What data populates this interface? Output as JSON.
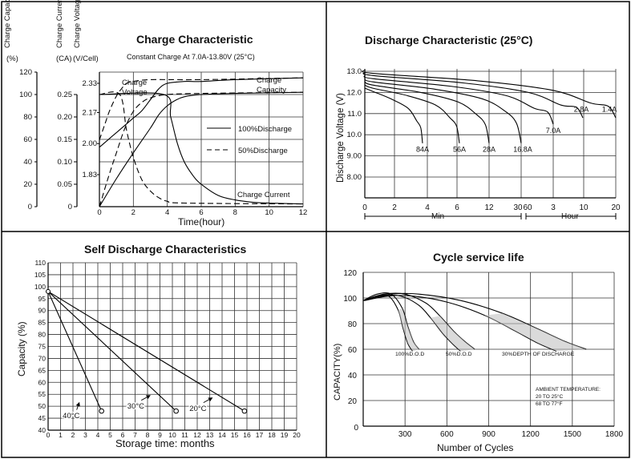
{
  "chart_data": [
    {
      "type": "line",
      "title": "Charge Characteristic",
      "subtitle": "Constant Charge At 7.0A-13.80V  (25°C)",
      "axis_headers": [
        {
          "label": "Charge Capacity",
          "unit": "(%)"
        },
        {
          "label": "Charge Current",
          "unit": "(CA)"
        },
        {
          "label": "Charge Voltage",
          "unit": "(V/Cell)"
        }
      ],
      "xlabel": "Time(hour)",
      "xlim": [
        0,
        12
      ],
      "xticks": [
        "0",
        "2",
        "4",
        "6",
        "8",
        "10",
        "12"
      ],
      "capacity_ticks": [
        "0",
        "20",
        "40",
        "60",
        "80",
        "100",
        "120"
      ],
      "current_ticks": [
        "0",
        "0.05",
        "0.10",
        "0.15",
        "0.20",
        "0.25"
      ],
      "voltage_ticks": [
        "1.83",
        "2.00",
        "2.17",
        "2.33"
      ],
      "annotations": [
        "Charge Voltage",
        "Charge Capacity",
        "Charge Current"
      ],
      "legend": [
        "100%Discharge",
        "50%Discharge"
      ],
      "series": [
        {
          "name": "Charge Voltage",
          "axis": "voltage",
          "discharge": "100%",
          "x": [
            0,
            0.5,
            1,
            1.5,
            2,
            2.5,
            3,
            3.5,
            4,
            5,
            6,
            8,
            12
          ],
          "y": [
            1.98,
            2.02,
            2.06,
            2.1,
            2.14,
            2.18,
            2.24,
            2.3,
            2.33,
            2.34,
            2.34,
            2.35,
            2.36
          ]
        },
        {
          "name": "Charge Voltage",
          "axis": "voltage",
          "discharge": "50%",
          "x": [
            0,
            0.3,
            0.6,
            1,
            1.3,
            1.6,
            2,
            3,
            6,
            12
          ],
          "y": [
            2.02,
            2.1,
            2.18,
            2.26,
            2.3,
            2.33,
            2.34,
            2.35,
            2.35,
            2.36
          ]
        },
        {
          "name": "Charge Capacity",
          "axis": "capacity",
          "discharge": "100%",
          "x": [
            0,
            1,
            2,
            3,
            3.5,
            4,
            4.5,
            5,
            6,
            8,
            12
          ],
          "y": [
            0,
            25,
            48,
            70,
            82,
            90,
            95,
            98,
            100,
            101,
            102
          ]
        },
        {
          "name": "Charge Capacity",
          "axis": "capacity",
          "discharge": "50%",
          "x": [
            0,
            0.5,
            1,
            1.5,
            2,
            2.5,
            3,
            4,
            6,
            12
          ],
          "y": [
            0,
            25,
            48,
            70,
            85,
            93,
            97,
            100,
            101,
            102
          ]
        },
        {
          "name": "Charge Current",
          "axis": "current",
          "discharge": "100%",
          "x": [
            0,
            3.8,
            4.2,
            4.6,
            5,
            5.5,
            6,
            7,
            8,
            9,
            10,
            12
          ],
          "y": [
            0.25,
            0.25,
            0.2,
            0.14,
            0.1,
            0.07,
            0.05,
            0.025,
            0.015,
            0.01,
            0.008,
            0.006
          ]
        },
        {
          "name": "Charge Current",
          "axis": "current",
          "discharge": "50%",
          "x": [
            0,
            1.2,
            1.6,
            2,
            2.5,
            3,
            3.5,
            4,
            5,
            12
          ],
          "y": [
            0.25,
            0.25,
            0.17,
            0.11,
            0.06,
            0.035,
            0.02,
            0.012,
            0.008,
            0.006
          ]
        }
      ]
    },
    {
      "type": "line",
      "title": "Discharge Characteristic  (25°C)",
      "ylabel": "Discharge Voltage (V)",
      "ylim": [
        7,
        13.3
      ],
      "yticks": [
        "8.00",
        "9.00",
        "10.0",
        "11.0",
        "12.0",
        "13.0"
      ],
      "xticks": [
        "0",
        "2",
        "4",
        "6",
        "12",
        "30",
        "60",
        "3",
        "10",
        "20"
      ],
      "xgroups": [
        "Min",
        "Hour"
      ],
      "series": [
        {
          "name": "84A",
          "end_voltage": 9.6
        },
        {
          "name": "56A",
          "end_voltage": 9.6
        },
        {
          "name": "28A",
          "end_voltage": 9.6
        },
        {
          "name": "16.8A",
          "end_voltage": 9.6
        },
        {
          "name": "7.0A",
          "end_voltage": 10.5
        },
        {
          "name": "2.8A",
          "end_voltage": 10.8
        },
        {
          "name": "1.4A",
          "end_voltage": 10.8
        }
      ]
    },
    {
      "type": "line",
      "title": "Self Discharge Characteristics",
      "xlabel": "Storage time: months",
      "ylabel": "Capacity (%)",
      "xlim": [
        0,
        20
      ],
      "ylim": [
        40,
        110
      ],
      "xticks": [
        "0",
        "1",
        "2",
        "3",
        "4",
        "5",
        "6",
        "7",
        "8",
        "9",
        "10",
        "11",
        "12",
        "13",
        "14",
        "15",
        "16",
        "17",
        "18",
        "19",
        "20"
      ],
      "yticks": [
        "40",
        "45",
        "50",
        "55",
        "60",
        "65",
        "70",
        "75",
        "80",
        "85",
        "90",
        "95",
        "100",
        "105",
        "110"
      ],
      "series": [
        {
          "name": "40°C",
          "x": [
            0,
            4.3
          ],
          "y": [
            98,
            48
          ]
        },
        {
          "name": "30°C",
          "x": [
            0,
            10.3
          ],
          "y": [
            98,
            48
          ]
        },
        {
          "name": "20°C",
          "x": [
            0,
            15.8
          ],
          "y": [
            98,
            48
          ]
        }
      ]
    },
    {
      "type": "line",
      "title": "Cycle service life",
      "xlabel": "Number of Cycles",
      "ylabel": "CAPACITY(%)",
      "xlim": [
        0,
        1800
      ],
      "ylim": [
        0,
        120
      ],
      "xticks": [
        "0",
        "300",
        "600",
        "900",
        "1200",
        "1500",
        "1800"
      ],
      "yticks": [
        "0",
        "20",
        "40",
        "60",
        "80",
        "100",
        "120"
      ],
      "note": [
        "AMBIENT TEMPERATURE:",
        "20 TO 25°C",
        "68 TO 77°F"
      ],
      "series": [
        {
          "name": "100%D.O.D",
          "x": [
            0,
            100,
            200,
            280,
            320,
            360,
            400
          ],
          "y": [
            98,
            103,
            103,
            92,
            78,
            66,
            60
          ]
        },
        {
          "name": "50%D.O.D",
          "x": [
            0,
            150,
            300,
            450,
            550,
            650,
            730,
            800
          ],
          "y": [
            98,
            103,
            103,
            96,
            86,
            74,
            66,
            60
          ]
        },
        {
          "name": "30%DEPTH OF DISCHARGE",
          "x": [
            0,
            200,
            400,
            700,
            1000,
            1250,
            1450,
            1600
          ],
          "y": [
            98,
            103,
            103,
            98,
            88,
            76,
            66,
            60
          ]
        }
      ]
    }
  ]
}
